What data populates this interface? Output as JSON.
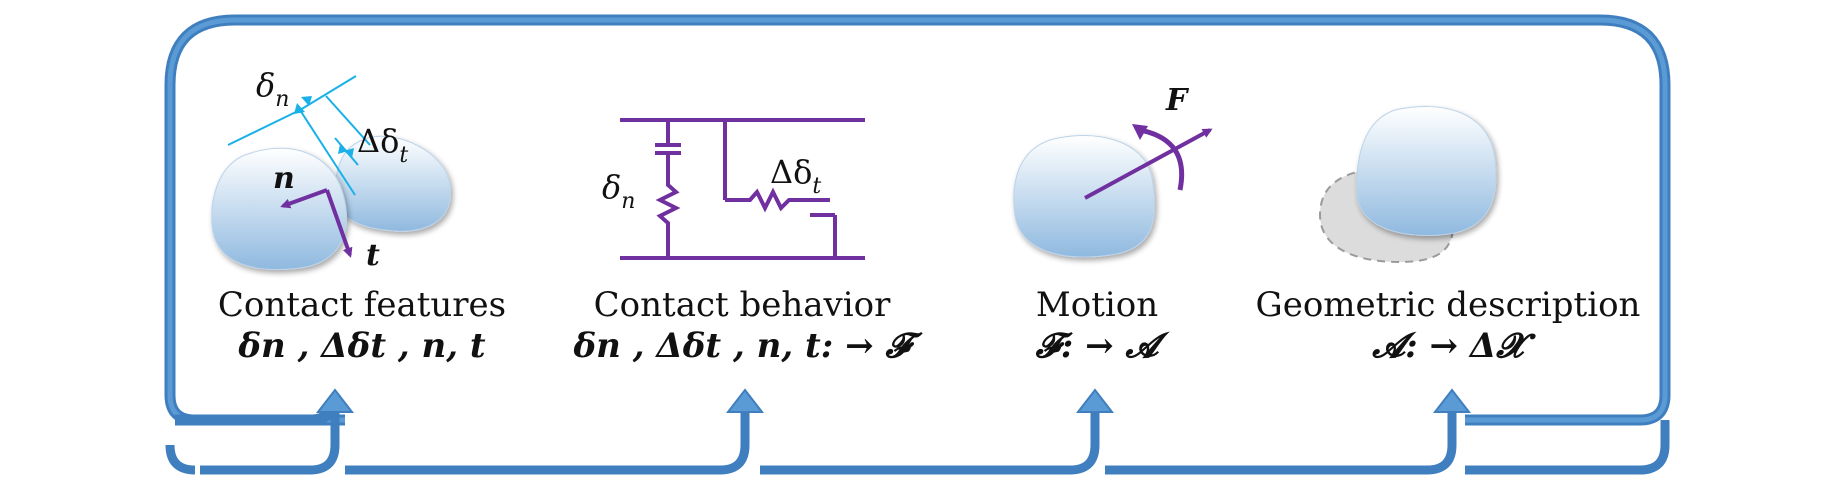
{
  "colors": {
    "frame": "#5b9bd5",
    "frame_dark": "#3f7fbf",
    "spring": "#7030a0",
    "dimension": "#1ab0e8",
    "shape_top": "#ffffff",
    "shape_bottom": "#8fb9df",
    "shadow_fill": "#dcdcdc",
    "text": "#111111"
  },
  "stages": [
    {
      "id": "contact-features",
      "title": "Contact features",
      "formula": "δn , Δδt , n, t"
    },
    {
      "id": "contact-behavior",
      "title": "Contact behavior",
      "formula": "δn , Δδt , n, t: → 𝓕"
    },
    {
      "id": "motion",
      "title": "Motion",
      "formula": "𝓕: → 𝓐"
    },
    {
      "id": "geometric-description",
      "title": "Geometric description",
      "formula": "𝓐: → Δ𝓧"
    }
  ],
  "labels": {
    "delta_n": "δ",
    "delta_n_sub": "n",
    "delta_delta_t": "Δδ",
    "delta_delta_t_sub": "t",
    "normal": "n",
    "tangent": "t",
    "force": "F"
  },
  "icons": [
    "loop-arrow",
    "up-arrow",
    "particle",
    "spring-damper",
    "rotation-arrow",
    "shadow-particle"
  ]
}
